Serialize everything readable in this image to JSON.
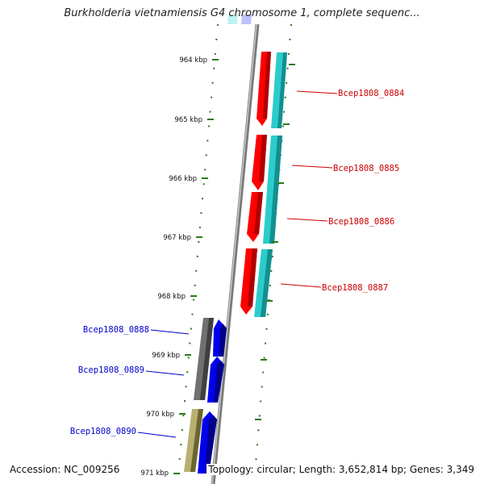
{
  "title": "Burkholderia vietnamiensis G4 chromosome 1, complete sequenc...",
  "footer": {
    "accession": "Accession: NC_009256",
    "summary": "Topology: circular; Length: 3,652,814 bp; Genes: 3,349"
  },
  "scale_labels": [
    "964 kbp",
    "965 kbp",
    "966 kbp",
    "967 kbp",
    "968 kbp",
    "969 kbp",
    "970 kbp",
    "971 kbp"
  ],
  "genes_right": [
    "Bcep1808_0884",
    "Bcep1808_0885",
    "Bcep1808_0886",
    "Bcep1808_0887"
  ],
  "genes_left": [
    "Bcep1808_0888",
    "Bcep1808_0889",
    "Bcep1808_0890"
  ],
  "colors": {
    "backbone": "#808080",
    "tick": "#2a7a1a",
    "right_label": "#cc0000",
    "left_label": "#0000cc",
    "red_arrow": "#ff0000",
    "cyan_bar": "#2ccccc",
    "blue_arrow": "#0000ee",
    "gray_bar": "#707070",
    "olive_bar": "#b8b070"
  }
}
